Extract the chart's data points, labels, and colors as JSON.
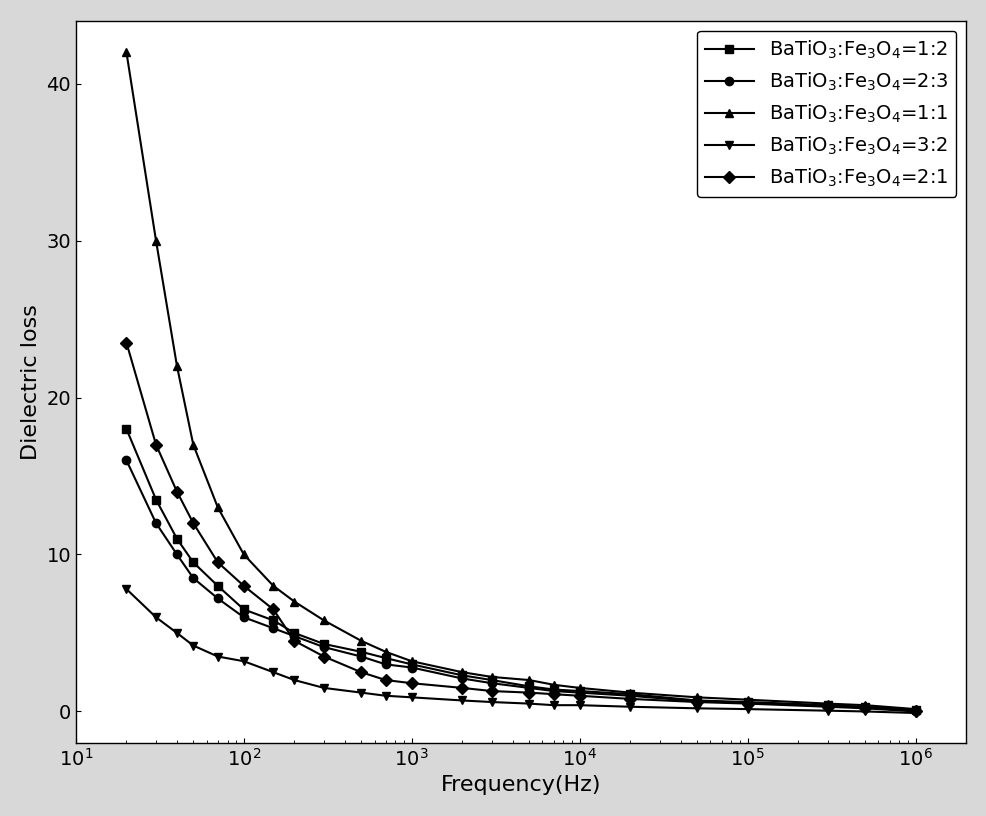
{
  "series": [
    {
      "label": "BaTiO$_3$:Fe$_3$O$_4$=1:2",
      "marker": "s",
      "x": [
        20,
        30,
        40,
        50,
        70,
        100,
        150,
        200,
        300,
        500,
        700,
        1000,
        2000,
        3000,
        5000,
        7000,
        10000,
        20000,
        50000,
        100000,
        300000,
        500000,
        1000000
      ],
      "y": [
        18.0,
        13.5,
        11.0,
        9.5,
        8.0,
        6.5,
        5.8,
        5.0,
        4.3,
        3.8,
        3.4,
        3.0,
        2.3,
        2.0,
        1.6,
        1.4,
        1.3,
        1.1,
        0.7,
        0.6,
        0.4,
        0.3,
        0.1
      ]
    },
    {
      "label": "BaTiO$_3$:Fe$_3$O$_4$=2:3",
      "marker": "o",
      "x": [
        20,
        30,
        40,
        50,
        70,
        100,
        150,
        200,
        300,
        500,
        700,
        1000,
        2000,
        3000,
        5000,
        7000,
        10000,
        20000,
        50000,
        100000,
        300000,
        500000,
        1000000
      ],
      "y": [
        16.0,
        12.0,
        10.0,
        8.5,
        7.2,
        6.0,
        5.3,
        4.8,
        4.1,
        3.5,
        3.0,
        2.8,
        2.1,
        1.8,
        1.5,
        1.3,
        1.2,
        1.0,
        0.65,
        0.55,
        0.35,
        0.25,
        0.05
      ]
    },
    {
      "label": "BaTiO$_3$:Fe$_3$O$_4$=1:1",
      "marker": "^",
      "x": [
        20,
        30,
        40,
        50,
        70,
        100,
        150,
        200,
        300,
        500,
        700,
        1000,
        2000,
        3000,
        5000,
        7000,
        10000,
        20000,
        50000,
        100000,
        300000,
        500000,
        1000000
      ],
      "y": [
        42.0,
        30.0,
        22.0,
        17.0,
        13.0,
        10.0,
        8.0,
        7.0,
        5.8,
        4.5,
        3.8,
        3.2,
        2.5,
        2.2,
        2.0,
        1.7,
        1.5,
        1.2,
        0.9,
        0.75,
        0.5,
        0.4,
        0.15
      ]
    },
    {
      "label": "BaTiO$_3$:Fe$_3$O$_4$=3:2",
      "marker": "v",
      "x": [
        20,
        30,
        40,
        50,
        70,
        100,
        150,
        200,
        300,
        500,
        700,
        1000,
        2000,
        3000,
        5000,
        7000,
        10000,
        20000,
        50000,
        100000,
        300000,
        500000,
        1000000
      ],
      "y": [
        7.8,
        6.0,
        5.0,
        4.2,
        3.5,
        3.2,
        2.5,
        2.0,
        1.5,
        1.2,
        1.0,
        0.9,
        0.7,
        0.6,
        0.5,
        0.4,
        0.4,
        0.3,
        0.2,
        0.15,
        0.05,
        0.0,
        -0.1
      ]
    },
    {
      "label": "BaTiO$_3$:Fe$_3$O$_4$=2:1",
      "marker": "D",
      "x": [
        20,
        30,
        40,
        50,
        70,
        100,
        150,
        200,
        300,
        500,
        700,
        1000,
        2000,
        3000,
        5000,
        7000,
        10000,
        20000,
        50000,
        100000,
        300000,
        500000,
        1000000
      ],
      "y": [
        23.5,
        17.0,
        14.0,
        12.0,
        9.5,
        8.0,
        6.5,
        4.5,
        3.5,
        2.5,
        2.0,
        1.8,
        1.5,
        1.3,
        1.2,
        1.1,
        1.0,
        0.8,
        0.6,
        0.5,
        0.3,
        0.2,
        0.0
      ]
    }
  ],
  "xlabel": "Frequency(Hz)",
  "ylabel": "Dielectric loss",
  "xlim": [
    10,
    2000000
  ],
  "ylim": [
    -2,
    44
  ],
  "yticks": [
    0,
    10,
    20,
    30,
    40
  ],
  "color": "black",
  "markersize": 6,
  "linewidth": 1.5,
  "legend_fontsize": 14,
  "axis_fontsize": 16,
  "tick_fontsize": 14,
  "fig_facecolor": "#d8d8d8",
  "ax_facecolor": "#ffffff"
}
